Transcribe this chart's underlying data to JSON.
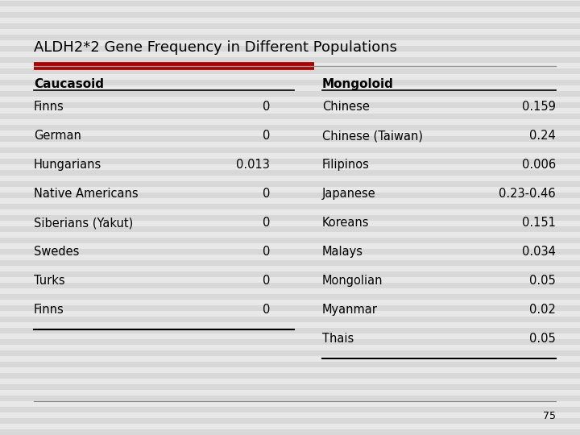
{
  "title": "ALDH2*2 Gene Frequency in Different Populations",
  "background_color": "#e8e8e8",
  "stripe_color": "#d8d8d8",
  "red_bar_color": "#aa0000",
  "line_color": "#888888",
  "caucasoid_header": "Caucasoid",
  "mongoloid_header": "Mongoloid",
  "caucasoid_rows": [
    [
      "Finns",
      "0"
    ],
    [
      "German",
      "0"
    ],
    [
      "Hungarians",
      "0.013"
    ],
    [
      "Native Americans",
      "0"
    ],
    [
      "Siberians (Yakut)",
      "0"
    ],
    [
      "Swedes",
      "0"
    ],
    [
      "Turks",
      "0"
    ],
    [
      "Finns",
      "0"
    ]
  ],
  "mongoloid_rows": [
    [
      "Chinese",
      "0.159"
    ],
    [
      "Chinese (Taiwan)",
      "0.24"
    ],
    [
      "Filipinos",
      "0.006"
    ],
    [
      "Japanese",
      "0.23-0.46"
    ],
    [
      "Koreans",
      "0.151"
    ],
    [
      "Malays",
      "0.034"
    ],
    [
      "Mongolian",
      "0.05"
    ],
    [
      "Myanmar",
      "0.02"
    ],
    [
      "Thais",
      "0.05"
    ]
  ],
  "page_number": "75",
  "title_fontsize": 13,
  "header_fontsize": 11,
  "row_fontsize": 10.5
}
